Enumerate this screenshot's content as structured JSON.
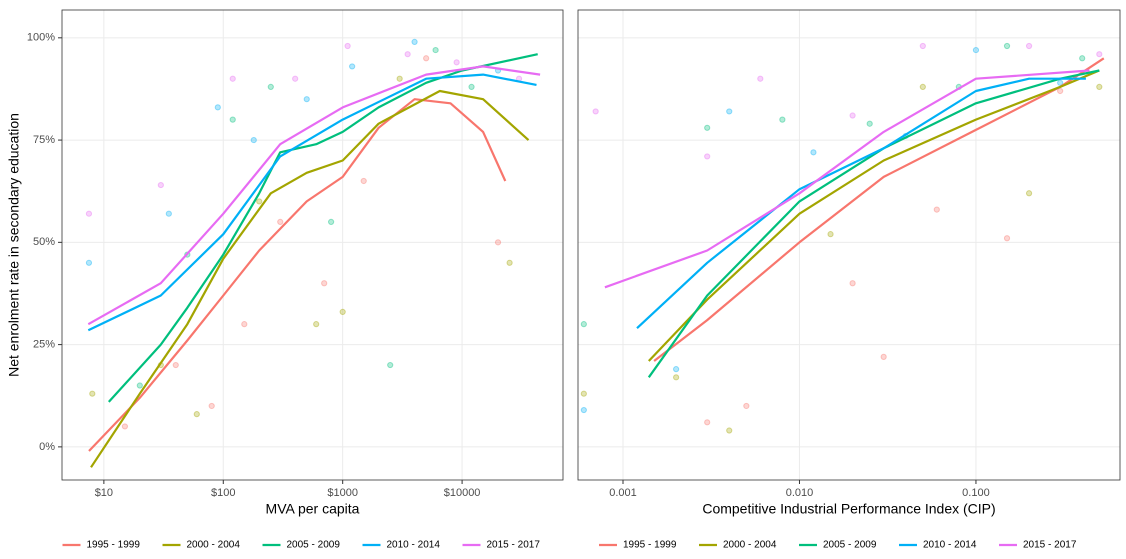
{
  "chart_data": [
    {
      "type": "scatter",
      "x_label": "MVA per capita",
      "y_label": "Net enrolment rate in secondary education",
      "log_x": true,
      "grid": true,
      "xlim": [
        4.46,
        70000
      ],
      "ylim": [
        -8.1,
        106.8
      ],
      "xticks": [
        {
          "value": 10,
          "label": "$10"
        },
        {
          "value": 100,
          "label": "$100"
        },
        {
          "value": 1000,
          "label": "$1000"
        },
        {
          "value": 10000,
          "label": "$10000"
        }
      ],
      "yticks": [
        {
          "value": 0,
          "label": "0%"
        },
        {
          "value": 25,
          "label": "25%"
        },
        {
          "value": 50,
          "label": "50%"
        },
        {
          "value": 75,
          "label": "75%"
        },
        {
          "value": 100,
          "label": "100%"
        }
      ],
      "series": [
        {
          "name": "1995 - 1999",
          "color": "#F8766D",
          "x": [
            7.5,
            20,
            50,
            100,
            200,
            500,
            1000,
            2000,
            4000,
            8000,
            15000,
            23000
          ],
          "values": [
            -1,
            12,
            26,
            37,
            48,
            60,
            66,
            78,
            85,
            84,
            77,
            65
          ],
          "points_x": [
            15,
            40,
            80,
            150,
            300,
            700,
            1500,
            5000,
            20000
          ],
          "points_y": [
            5,
            20,
            10,
            30,
            55,
            40,
            65,
            95,
            50
          ]
        },
        {
          "name": "2000 - 2004",
          "color": "#A3A500",
          "x": [
            7.8,
            20,
            50,
            100,
            250,
            500,
            1000,
            2000,
            6500,
            15000,
            36000
          ],
          "values": [
            -5,
            13,
            30,
            46,
            62,
            67,
            70,
            79,
            87,
            85,
            75
          ],
          "points_x": [
            8,
            30,
            60,
            200,
            600,
            1000,
            3000,
            25000
          ],
          "points_y": [
            13,
            20,
            8,
            60,
            30,
            33,
            90,
            45
          ]
        },
        {
          "name": "2005 - 2009",
          "color": "#00BF7D",
          "x": [
            11,
            30,
            50,
            100,
            200,
            300,
            600,
            1000,
            2000,
            5000,
            10000,
            43000
          ],
          "values": [
            11,
            25,
            34,
            47,
            62,
            72,
            74,
            77,
            83,
            89,
            92,
            96
          ],
          "points_x": [
            20,
            50,
            120,
            250,
            800,
            2500,
            6000,
            12000
          ],
          "points_y": [
            15,
            47,
            80,
            88,
            55,
            20,
            97,
            88
          ]
        },
        {
          "name": "2010 - 2014",
          "color": "#00B0F6",
          "x": [
            7.4,
            30,
            100,
            300,
            1000,
            5000,
            15000,
            42000
          ],
          "values": [
            28.5,
            37,
            52,
            71,
            80,
            90,
            91,
            88.5
          ],
          "points_x": [
            7.5,
            35,
            90,
            180,
            500,
            1200,
            4000,
            20000
          ],
          "points_y": [
            45,
            57,
            83,
            75,
            85,
            93,
            99,
            92
          ]
        },
        {
          "name": "2015 - 2017",
          "color": "#E76BF3",
          "x": [
            7.4,
            30,
            100,
            300,
            1000,
            5000,
            15000,
            45000
          ],
          "values": [
            30,
            40,
            57,
            74,
            83,
            91,
            93,
            91
          ],
          "points_x": [
            7.5,
            30,
            120,
            400,
            1100,
            3500,
            9000,
            30000
          ],
          "points_y": [
            57,
            64,
            90,
            90,
            98,
            96,
            94,
            90
          ]
        }
      ]
    },
    {
      "type": "scatter",
      "x_label": "Competitive Industrial Performance Index (CIP)",
      "log_x": true,
      "grid": true,
      "xlim": [
        0.000556,
        0.655
      ],
      "ylim": [
        -8.1,
        106.8
      ],
      "xticks": [
        0.001,
        {
          "value": 0.01,
          "label": "0.010"
        },
        {
          "value": 0.1,
          "label": "0.100"
        }
      ],
      "yticks": [
        0,
        25,
        50,
        75,
        100
      ],
      "series": [
        {
          "name": "1995 - 1999",
          "color": "#F8766D",
          "x": [
            0.0015,
            0.003,
            0.01,
            0.03,
            0.1,
            0.3,
            0.53
          ],
          "values": [
            21,
            31,
            50,
            66,
            77.5,
            88,
            95
          ],
          "points_x": [
            0.003,
            0.005,
            0.02,
            0.03,
            0.06,
            0.15,
            0.3
          ],
          "points_y": [
            6,
            10,
            40,
            22,
            58,
            51,
            87
          ]
        },
        {
          "name": "2000 - 2004",
          "color": "#A3A500",
          "x": [
            0.0014,
            0.003,
            0.01,
            0.03,
            0.1,
            0.3,
            0.5
          ],
          "values": [
            21,
            36,
            57,
            70,
            80,
            88,
            92
          ],
          "points_x": [
            0.0006,
            0.002,
            0.004,
            0.015,
            0.05,
            0.2,
            0.5
          ],
          "points_y": [
            13,
            17,
            4,
            52,
            88,
            62,
            88
          ]
        },
        {
          "name": "2005 - 2009",
          "color": "#00BF7D",
          "x": [
            0.0014,
            0.003,
            0.01,
            0.03,
            0.1,
            0.3,
            0.5
          ],
          "values": [
            17,
            37,
            60,
            73,
            84,
            90,
            92
          ],
          "points_x": [
            0.0006,
            0.003,
            0.008,
            0.025,
            0.08,
            0.15,
            0.4
          ],
          "points_y": [
            30,
            78,
            80,
            79,
            88,
            98,
            95
          ]
        },
        {
          "name": "2010 - 2014",
          "color": "#00B0F6",
          "x": [
            0.0012,
            0.003,
            0.01,
            0.03,
            0.1,
            0.2,
            0.42
          ],
          "values": [
            29,
            45,
            63,
            73,
            87,
            90,
            90
          ],
          "points_x": [
            0.0006,
            0.002,
            0.004,
            0.012,
            0.04,
            0.1,
            0.3
          ],
          "points_y": [
            9,
            19,
            82,
            72,
            76,
            97,
            89
          ]
        },
        {
          "name": "2015 - 2017",
          "color": "#E76BF3",
          "x": [
            0.00079,
            0.003,
            0.01,
            0.03,
            0.1,
            0.44
          ],
          "values": [
            39,
            48,
            62,
            77,
            90,
            92
          ],
          "points_x": [
            0.0007,
            0.003,
            0.006,
            0.02,
            0.05,
            0.2,
            0.5
          ],
          "points_y": [
            82,
            71,
            90,
            81,
            98,
            98,
            96
          ]
        }
      ]
    }
  ]
}
